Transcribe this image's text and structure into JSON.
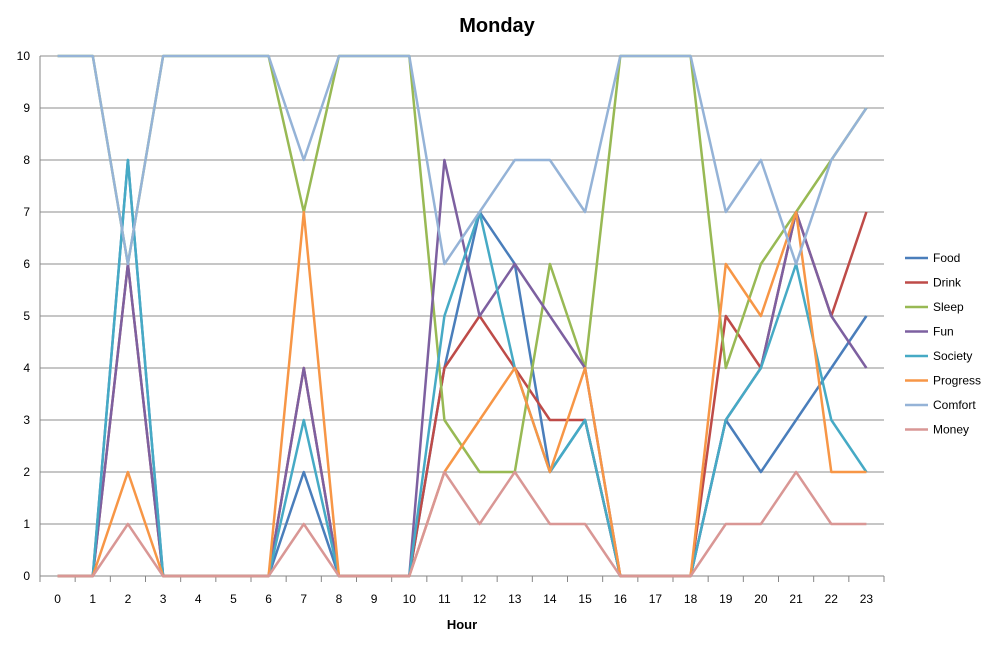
{
  "chart_data": {
    "type": "line",
    "title": "Monday",
    "xlabel": "Hour",
    "ylabel": "",
    "ylim": [
      0,
      10
    ],
    "yticks": [
      0,
      1,
      2,
      3,
      4,
      5,
      6,
      7,
      8,
      9,
      10
    ],
    "grid": "horizontal",
    "legend_position": "right",
    "x": [
      0,
      1,
      2,
      3,
      4,
      5,
      6,
      7,
      8,
      9,
      10,
      11,
      12,
      13,
      14,
      15,
      16,
      17,
      18,
      19,
      20,
      21,
      22,
      23
    ],
    "series": [
      {
        "name": "Food",
        "color": "#4A7EBB",
        "values": [
          0,
          0,
          8,
          0,
          0,
          0,
          0,
          2,
          0,
          0,
          0,
          4,
          7,
          6,
          2,
          3,
          0,
          0,
          0,
          3,
          2,
          3,
          4,
          5
        ]
      },
      {
        "name": "Drink",
        "color": "#BE4B48",
        "values": [
          0,
          0,
          6,
          0,
          0,
          0,
          0,
          4,
          0,
          0,
          0,
          4,
          5,
          4,
          3,
          3,
          0,
          0,
          0,
          5,
          4,
          7,
          5,
          7
        ]
      },
      {
        "name": "Sleep",
        "color": "#98B954",
        "values": [
          10,
          10,
          6,
          10,
          10,
          10,
          10,
          7,
          10,
          10,
          10,
          3,
          2,
          2,
          6,
          4,
          10,
          10,
          10,
          4,
          6,
          7,
          8,
          9
        ]
      },
      {
        "name": "Fun",
        "color": "#7D60A0",
        "values": [
          0,
          0,
          6,
          0,
          0,
          0,
          0,
          4,
          0,
          0,
          0,
          8,
          5,
          6,
          5,
          4,
          0,
          0,
          0,
          3,
          4,
          7,
          5,
          4
        ]
      },
      {
        "name": "Society",
        "color": "#46AAC5",
        "values": [
          0,
          0,
          8,
          0,
          0,
          0,
          0,
          3,
          0,
          0,
          0,
          5,
          7,
          4,
          2,
          3,
          0,
          0,
          0,
          3,
          4,
          6,
          3,
          2
        ]
      },
      {
        "name": "Progress",
        "color": "#F79646",
        "values": [
          0,
          0,
          2,
          0,
          0,
          0,
          0,
          7,
          0,
          0,
          0,
          2,
          3,
          4,
          2,
          4,
          0,
          0,
          0,
          6,
          5,
          7,
          2,
          2
        ]
      },
      {
        "name": "Comfort",
        "color": "#95B3D7",
        "values": [
          10,
          10,
          6,
          10,
          10,
          10,
          10,
          8,
          10,
          10,
          10,
          6,
          7,
          8,
          8,
          7,
          10,
          10,
          10,
          7,
          8,
          6,
          8,
          9
        ]
      },
      {
        "name": "Money",
        "color": "#D99795",
        "values": [
          0,
          0,
          1,
          0,
          0,
          0,
          0,
          1,
          0,
          0,
          0,
          2,
          1,
          2,
          1,
          1,
          0,
          0,
          0,
          1,
          1,
          2,
          1,
          1
        ]
      }
    ]
  }
}
